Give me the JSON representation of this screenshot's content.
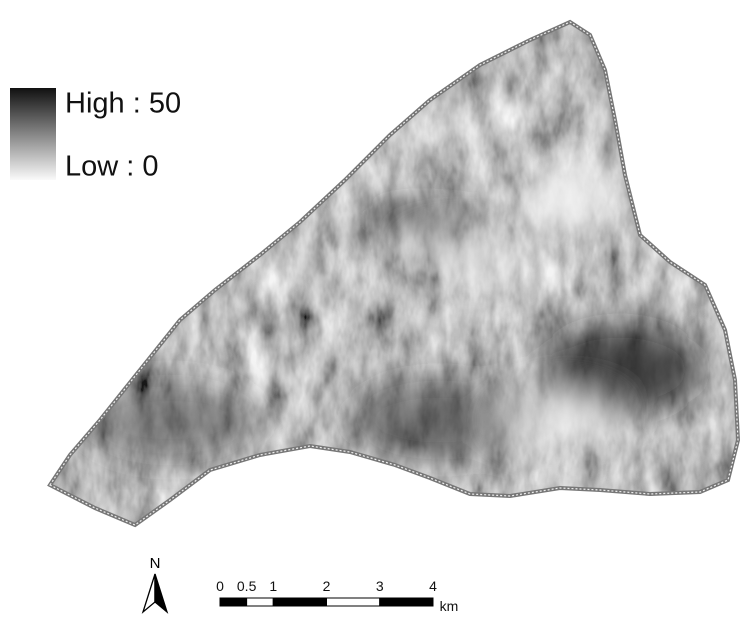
{
  "legend": {
    "high": "High : 50",
    "low": "Low : 0"
  },
  "north_arrow": "N",
  "scale_bar": {
    "ticks": [
      0,
      0.5,
      1,
      2,
      3,
      4
    ],
    "unit": "km"
  }
}
